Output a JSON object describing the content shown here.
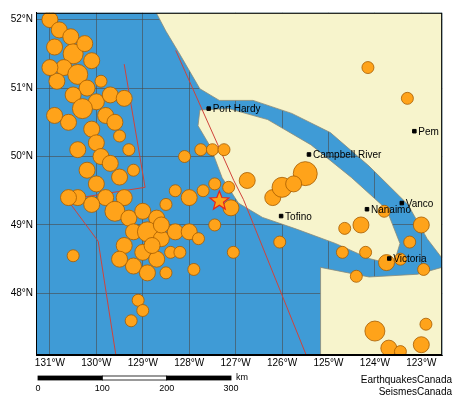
{
  "chart_data": {
    "type": "bubble",
    "xlim": [
      -131.3,
      -122.55
    ],
    "xticks": [
      {
        "value": -131,
        "label": "131°W"
      },
      {
        "value": -130,
        "label": "130°W"
      },
      {
        "value": -129,
        "label": "129°W"
      },
      {
        "value": -128,
        "label": "128°W"
      },
      {
        "value": -127,
        "label": "127°W"
      },
      {
        "value": -126,
        "label": "126°W"
      },
      {
        "value": -125,
        "label": "125°W"
      },
      {
        "value": -124,
        "label": "124°W"
      },
      {
        "value": -123,
        "label": "123°W"
      }
    ],
    "ylim": [
      47.1,
      52.1
    ],
    "yticks": [
      {
        "value": 48,
        "label": "48°N"
      },
      {
        "value": 49,
        "label": "49°N"
      },
      {
        "value": 50,
        "label": "50°N"
      },
      {
        "value": 51,
        "label": "51°N"
      },
      {
        "value": 52,
        "label": "52°N"
      }
    ],
    "grid": true,
    "land": [
      {
        "color": "#f7f4cc",
        "points": [
          [
            -128.71,
            52.1
          ],
          [
            -122.56,
            52.1
          ],
          [
            -122.56,
            48.52
          ],
          [
            -122.875,
            48.8
          ],
          [
            -123.29,
            49.3
          ],
          [
            -124.125,
            49.86
          ],
          [
            -124.96,
            50.35
          ],
          [
            -125.79,
            50.63
          ],
          [
            -126.625,
            50.82
          ],
          [
            -127.35,
            50.82
          ],
          [
            -127.77,
            50.99
          ],
          [
            -128.19,
            51.48
          ],
          [
            -128.5,
            51.83
          ]
        ]
      },
      {
        "color": "#f7f4cc",
        "points": [
          [
            -127.77,
            50.68
          ],
          [
            -127.15,
            50.7
          ],
          [
            -126.31,
            50.54
          ],
          [
            -125.375,
            50.17
          ],
          [
            -124.5,
            49.69
          ],
          [
            -123.75,
            49.23
          ],
          [
            -123.46,
            48.73
          ],
          [
            -123.6,
            48.42
          ],
          [
            -124.125,
            48.51
          ],
          [
            -124.85,
            48.73
          ],
          [
            -125.69,
            48.94
          ],
          [
            -126.42,
            49.11
          ],
          [
            -126.94,
            49.32
          ],
          [
            -127.29,
            49.69
          ],
          [
            -127.54,
            50.14
          ],
          [
            -127.81,
            50.45
          ]
        ]
      },
      {
        "color": "#f7f4cc",
        "points": [
          [
            -125.17,
            48.38
          ],
          [
            -124.125,
            48.24
          ],
          [
            -123.08,
            48.28
          ],
          [
            -122.56,
            48.38
          ],
          [
            -122.56,
            47.1
          ],
          [
            -125.17,
            47.1
          ]
        ]
      }
    ],
    "boundaries": {
      "color": "#d0433a",
      "lines": [
        [
          [
            -130.625,
            49.37
          ],
          [
            -129.96,
            48.76
          ],
          [
            -129.58,
            47.1
          ]
        ],
        [
          [
            -129.4,
            51.35
          ],
          [
            -128.95,
            49.55
          ]
        ],
        [
          [
            -130.625,
            49.37
          ],
          [
            -128.95,
            49.55
          ]
        ],
        [
          [
            -128.29,
            51.55
          ],
          [
            -127.04,
            49.65
          ],
          [
            -126.83,
            49.37
          ],
          [
            -125.48,
            47.1
          ]
        ]
      ]
    },
    "earthquakes": {
      "color": "#ffa31a",
      "x": [
        -131.0,
        -130.8,
        -130.55,
        -130.9,
        -130.5,
        -130.25,
        -130.7,
        -130.4,
        -130.1,
        -130.85,
        -130.2,
        -129.9,
        -130.5,
        -130.0,
        -129.7,
        -130.3,
        -129.8,
        -130.6,
        -130.1,
        -129.6,
        -129.4,
        -129.5,
        -130.0,
        -130.4,
        -129.9,
        -129.3,
        -129.7,
        -130.2,
        -129.5,
        -130.0,
        -129.2,
        -129.8,
        -130.4,
        -129.4,
        -130.1,
        -129.6,
        -129.3,
        -129.0,
        -128.7,
        -128.5,
        -129.2,
        -128.9,
        -128.6,
        -128.3,
        -129.4,
        -129.0,
        -128.7,
        -128.4,
        -129.2,
        -128.9,
        -128.5,
        -129.5,
        -128.8,
        -129.1,
        -129.0,
        -129.25,
        -128.2,
        -128.6,
        -130.6,
        -130.5,
        -130.9,
        -128.1,
        -127.75,
        -127.5,
        -127.25,
        -128.0,
        -127.7,
        -127.45,
        -127.15,
        -127.1,
        -127.45,
        -128.3,
        -128.0,
        -127.8,
        -127.05,
        -127.9,
        -126.75,
        -126.2,
        -126.0,
        -125.5,
        -125.75,
        -126.05,
        -124.65,
        -124.3,
        -123.8,
        -124.2,
        -123.75,
        -123.45,
        -123.25,
        -123.0,
        -122.95,
        -124.4,
        -124.15,
        -123.3,
        -124.0,
        -123.0,
        -122.9,
        -123.7,
        -123.45,
        -124.7,
        -131.0
      ],
      "y": [
        52.0,
        51.85,
        51.75,
        51.6,
        51.5,
        51.65,
        51.3,
        51.2,
        51.4,
        51.1,
        51.0,
        51.1,
        50.9,
        50.8,
        50.9,
        50.7,
        50.6,
        50.5,
        50.4,
        50.5,
        50.85,
        50.3,
        50.2,
        50.1,
        50.0,
        50.1,
        49.9,
        49.8,
        49.7,
        49.6,
        49.8,
        49.4,
        49.4,
        49.4,
        49.3,
        49.2,
        49.1,
        49.2,
        49.1,
        49.3,
        48.9,
        48.9,
        48.8,
        48.9,
        48.7,
        48.6,
        48.5,
        48.6,
        48.4,
        48.3,
        48.3,
        48.5,
        48.7,
        47.9,
        47.75,
        47.6,
        48.6,
        49.0,
        49.4,
        48.55,
        50.6,
        50.0,
        50.1,
        50.1,
        50.1,
        49.4,
        49.5,
        49.6,
        49.55,
        49.25,
        49.0,
        49.5,
        48.9,
        48.8,
        48.6,
        48.35,
        49.65,
        49.4,
        49.55,
        49.75,
        49.6,
        48.75,
        48.95,
        49.0,
        49.2,
        48.6,
        48.45,
        48.5,
        48.75,
        49.0,
        48.35,
        48.25,
        51.3,
        50.85,
        47.45,
        47.25,
        47.55,
        47.2,
        47.15,
        48.6,
        51.3
      ],
      "magnitudes": [
        5,
        5,
        5,
        5,
        5.5,
        5,
        5,
        5.5,
        5,
        5,
        5,
        4.5,
        5,
        5,
        5,
        5.5,
        5,
        5,
        5,
        5,
        5,
        4.5,
        5,
        5,
        5,
        4.5,
        5,
        5,
        5,
        5,
        4.5,
        5,
        5,
        5,
        5,
        5.5,
        5,
        5,
        5,
        4.5,
        5,
        5.5,
        5,
        5,
        5,
        5,
        5,
        4.5,
        5,
        5,
        4.5,
        5,
        5,
        4.5,
        4.5,
        4.5,
        4.5,
        5,
        5,
        4.5,
        5,
        4.5,
        4.5,
        4.5,
        4.5,
        5,
        4.5,
        4.5,
        4.5,
        5,
        4.5,
        4.5,
        5,
        4.5,
        4.5,
        4.5,
        5,
        5,
        5.5,
        6,
        5,
        4.5,
        4.5,
        5,
        4.5,
        4.5,
        5,
        4.5,
        4.5,
        5,
        4.5,
        4.5,
        4.5,
        4.5,
        5.5,
        5,
        4.5,
        5,
        4.5,
        4.5,
        5
      ]
    },
    "epicenter": {
      "x": -127.35,
      "y": 49.35,
      "color": "#e8231c",
      "marker": "star"
    },
    "places": [
      {
        "label": "Port Hardy",
        "x": -127.58,
        "y": 50.7
      },
      {
        "label": "Campbell River",
        "x": -125.42,
        "y": 50.03
      },
      {
        "label": "Tofino",
        "x": -126.02,
        "y": 49.13
      },
      {
        "label": "Nanaimo",
        "x": -124.17,
        "y": 49.23
      },
      {
        "label": "Vanco",
        "x": -123.42,
        "y": 49.32
      },
      {
        "label": "Victoria",
        "x": -123.69,
        "y": 48.51
      },
      {
        "label": "Pem",
        "x": -123.15,
        "y": 50.37
      }
    ],
    "scale_bar": {
      "ticks": [
        0,
        100,
        200,
        300
      ],
      "unit": "km"
    },
    "credits": [
      "EarthquakesCanada",
      "SeismesCanada"
    ]
  }
}
